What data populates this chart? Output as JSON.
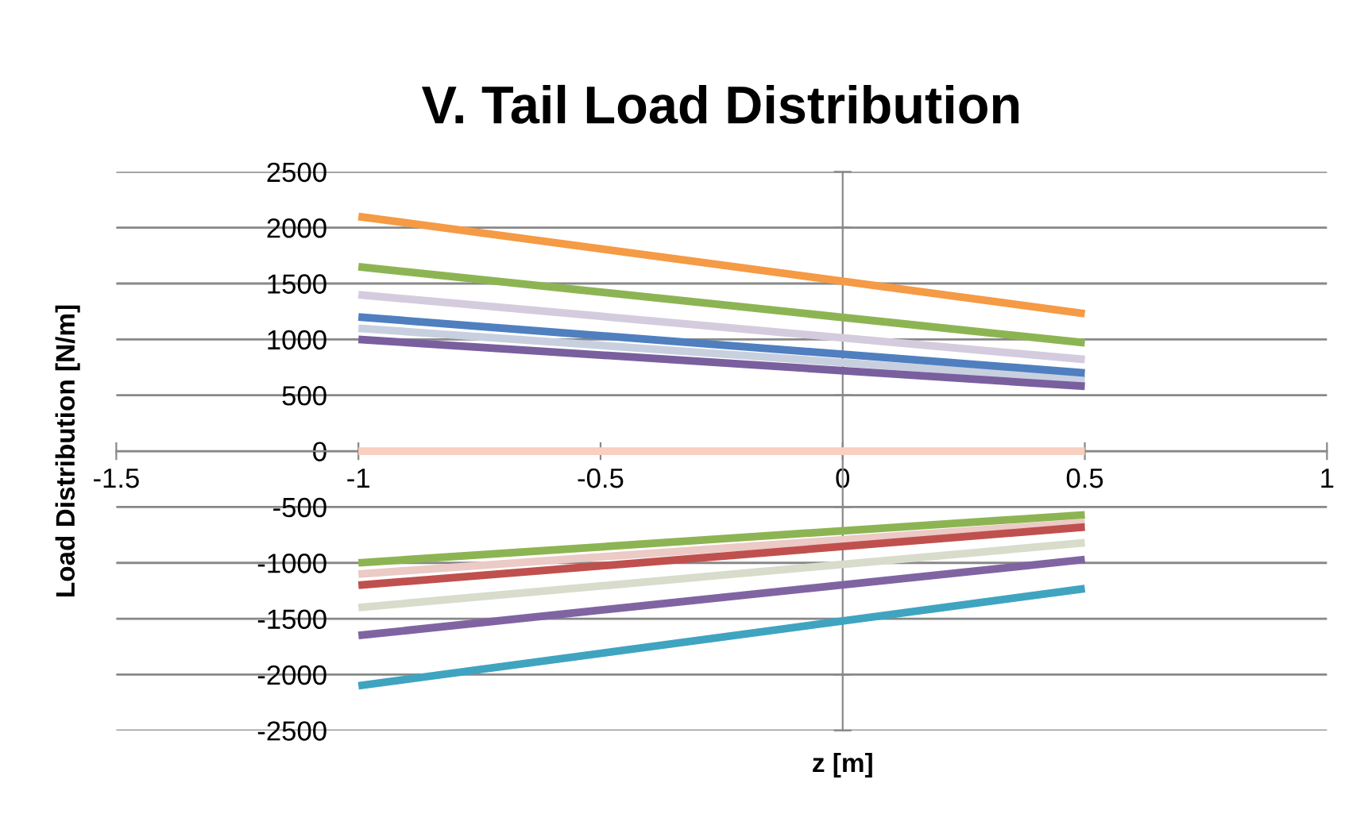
{
  "chart_data": {
    "type": "line",
    "title": "V. Tail Load Distribution",
    "xlabel": "z [m]",
    "ylabel": "Load Distribution [N/m]",
    "xlim": [
      -1.5,
      1
    ],
    "xticks": [
      -1.5,
      -1,
      -0.5,
      0,
      0.5,
      1
    ],
    "ylim": [
      -2500,
      2500
    ],
    "yticks": [
      -2500,
      -2000,
      -1500,
      -1000,
      -500,
      0,
      500,
      1000,
      1500,
      2000,
      2500
    ],
    "grid": "y",
    "marker": "none",
    "line_style": "solid",
    "x": [
      -1,
      0.5
    ],
    "series": [
      {
        "color": "#f8cfc0",
        "values": [
          0,
          0
        ]
      },
      {
        "color": "#c8d0e0",
        "values": [
          1100,
          640
        ]
      },
      {
        "color": "#7a5f9e",
        "values": [
          1000,
          580
        ]
      },
      {
        "color": "#4f7fbf",
        "values": [
          1200,
          700
        ]
      },
      {
        "color": "#d4ccde",
        "values": [
          1400,
          820
        ]
      },
      {
        "color": "#8db453",
        "values": [
          1650,
          970
        ]
      },
      {
        "color": "#f59a45",
        "values": [
          2100,
          1230
        ]
      },
      {
        "color": "#eccac6",
        "values": [
          -1100,
          -640
        ]
      },
      {
        "color": "#8db453",
        "values": [
          -1000,
          -570
        ]
      },
      {
        "color": "#c0504d",
        "values": [
          -1200,
          -680
        ]
      },
      {
        "color": "#d8dccb",
        "values": [
          -1400,
          -820
        ]
      },
      {
        "color": "#8064a2",
        "values": [
          -1650,
          -970
        ]
      },
      {
        "color": "#3fa4c0",
        "values": [
          -2100,
          -1230
        ]
      }
    ]
  }
}
